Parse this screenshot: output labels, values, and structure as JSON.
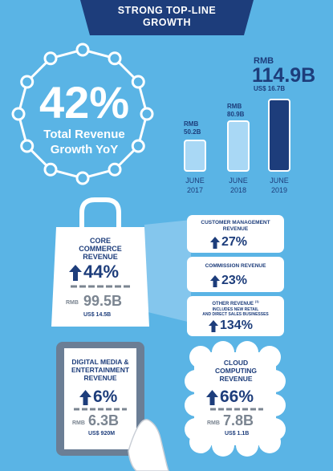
{
  "header": {
    "line1": "STRONG TOP-LINE",
    "line2": "GROWTH"
  },
  "growth": {
    "value": "42%",
    "label1": "Total Revenue",
    "label2": "Growth YoY"
  },
  "bars": {
    "items": [
      {
        "currency": "RMB",
        "amount": "50.2B",
        "month": "JUNE",
        "year": "2017",
        "value": 50.2
      },
      {
        "currency": "RMB",
        "amount": "80.9B",
        "month": "JUNE",
        "year": "2018",
        "value": 80.9
      },
      {
        "currency": "RMB",
        "amount": "114.9B",
        "usd": "US$ 16.7B",
        "month": "JUNE",
        "year": "2019",
        "value": 114.9
      }
    ]
  },
  "core_commerce": {
    "title1": "CORE",
    "title2": "COMMERCE",
    "title3": "REVENUE",
    "growth": "44%",
    "currency": "RMB",
    "amount": "99.5B",
    "usd": "US$ 14.5B"
  },
  "customer_management": {
    "title1": "CUSTOMER MANAGEMENT",
    "title2": "REVENUE",
    "growth": "27%"
  },
  "commission": {
    "title": "COMMISSION REVENUE",
    "growth": "23%"
  },
  "other": {
    "title": "OTHER REVENUE",
    "footnote": "(1)",
    "sub1": "INCLUDES NEW RETAIL",
    "sub2": "AND DIRECT SALES BUSINESSES",
    "growth": "134%"
  },
  "digital_media": {
    "title1": "DIGITAL MEDIA &",
    "title2": "ENTERTAINMENT",
    "title3": "REVENUE",
    "growth": "6%",
    "currency": "RMB",
    "amount": "6.3B",
    "usd": "US$ 920M"
  },
  "cloud": {
    "title1": "CLOUD",
    "title2": "COMPUTING",
    "title3": "REVENUE",
    "growth": "66%",
    "currency": "RMB",
    "amount": "7.8B",
    "usd": "US$ 1.1B"
  },
  "colors": {
    "background": "#5ab4e5",
    "navy": "#1d3d7b",
    "light_bar": "#a9d8f5",
    "grey": "#7b8591"
  }
}
